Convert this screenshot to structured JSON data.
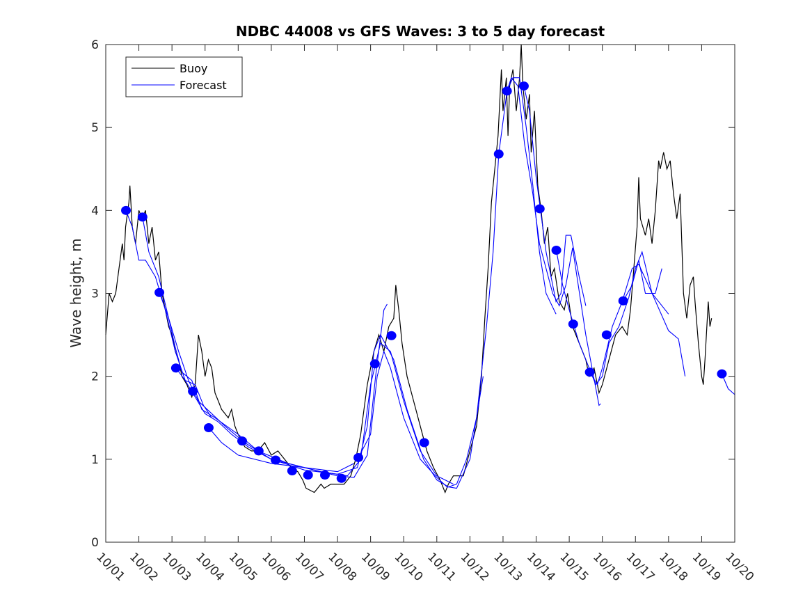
{
  "chart_data": {
    "type": "line",
    "title": "NDBC 44008 vs GFS Waves: 3 to 5 day forecast",
    "xlabel": "",
    "ylabel": "Wave height, m",
    "x_unit": "days since 10/01",
    "xlim": [
      0,
      19
    ],
    "ylim": [
      0,
      6
    ],
    "x_tick_labels": [
      "10/01",
      "10/02",
      "10/03",
      "10/04",
      "10/05",
      "10/06",
      "10/07",
      "10/08",
      "10/09",
      "10/10",
      "10/11",
      "10/12",
      "10/13",
      "10/14",
      "10/15",
      "10/16",
      "10/17",
      "10/18",
      "10/19",
      "10/20"
    ],
    "y_ticks": [
      0,
      1,
      2,
      3,
      4,
      5,
      6
    ],
    "grid": false,
    "legend": {
      "placement": "top-left",
      "entries": [
        "Buoy",
        "Forecast"
      ]
    },
    "colors": {
      "buoy": "#000000",
      "forecast": "#0000ff"
    },
    "buoy": [
      [
        0,
        2.5
      ],
      [
        0.1,
        3.0
      ],
      [
        0.2,
        2.9
      ],
      [
        0.3,
        3.0
      ],
      [
        0.4,
        3.3
      ],
      [
        0.5,
        3.6
      ],
      [
        0.55,
        3.4
      ],
      [
        0.6,
        3.8
      ],
      [
        0.7,
        4.1
      ],
      [
        0.73,
        4.3
      ],
      [
        0.8,
        3.8
      ],
      [
        0.9,
        3.6
      ],
      [
        1.0,
        4.0
      ],
      [
        1.1,
        3.9
      ],
      [
        1.2,
        4.0
      ],
      [
        1.3,
        3.6
      ],
      [
        1.4,
        3.8
      ],
      [
        1.5,
        3.4
      ],
      [
        1.6,
        3.5
      ],
      [
        1.7,
        3.0
      ],
      [
        1.8,
        2.8
      ],
      [
        1.9,
        2.6
      ],
      [
        2.0,
        2.5
      ],
      [
        2.1,
        2.3
      ],
      [
        2.2,
        2.2
      ],
      [
        2.3,
        2.0
      ],
      [
        2.45,
        1.9
      ],
      [
        2.6,
        1.75
      ],
      [
        2.7,
        1.9
      ],
      [
        2.8,
        2.5
      ],
      [
        2.9,
        2.3
      ],
      [
        3.0,
        2.0
      ],
      [
        3.1,
        2.2
      ],
      [
        3.2,
        2.1
      ],
      [
        3.3,
        1.8
      ],
      [
        3.4,
        1.7
      ],
      [
        3.5,
        1.6
      ],
      [
        3.6,
        1.55
      ],
      [
        3.7,
        1.5
      ],
      [
        3.8,
        1.6
      ],
      [
        3.9,
        1.4
      ],
      [
        4.0,
        1.3
      ],
      [
        4.2,
        1.15
      ],
      [
        4.4,
        1.1
      ],
      [
        4.6,
        1.1
      ],
      [
        4.8,
        1.2
      ],
      [
        5.0,
        1.05
      ],
      [
        5.2,
        1.1
      ],
      [
        5.4,
        1.0
      ],
      [
        5.6,
        0.9
      ],
      [
        5.8,
        0.85
      ],
      [
        5.95,
        0.75
      ],
      [
        6.05,
        0.65
      ],
      [
        6.3,
        0.6
      ],
      [
        6.5,
        0.7
      ],
      [
        6.6,
        0.65
      ],
      [
        6.8,
        0.7
      ],
      [
        7.0,
        0.7
      ],
      [
        7.2,
        0.7
      ],
      [
        7.4,
        0.8
      ],
      [
        7.55,
        1.0
      ],
      [
        7.7,
        1.3
      ],
      [
        7.8,
        1.6
      ],
      [
        7.9,
        1.9
      ],
      [
        8.0,
        2.1
      ],
      [
        8.1,
        2.3
      ],
      [
        8.25,
        2.5
      ],
      [
        8.4,
        2.3
      ],
      [
        8.55,
        2.6
      ],
      [
        8.7,
        2.7
      ],
      [
        8.76,
        3.1
      ],
      [
        8.85,
        2.8
      ],
      [
        8.95,
        2.4
      ],
      [
        9.1,
        2.0
      ],
      [
        9.3,
        1.7
      ],
      [
        9.5,
        1.4
      ],
      [
        9.7,
        1.1
      ],
      [
        9.9,
        0.9
      ],
      [
        10.1,
        0.75
      ],
      [
        10.25,
        0.6
      ],
      [
        10.35,
        0.7
      ],
      [
        10.5,
        0.8
      ],
      [
        10.8,
        0.8
      ],
      [
        11.0,
        1.1
      ],
      [
        11.2,
        1.4
      ],
      [
        11.35,
        2.0
      ],
      [
        11.45,
        2.7
      ],
      [
        11.55,
        3.3
      ],
      [
        11.65,
        4.1
      ],
      [
        11.75,
        4.5
      ],
      [
        11.85,
        4.9
      ],
      [
        11.95,
        5.7
      ],
      [
        12.0,
        5.2
      ],
      [
        12.1,
        5.6
      ],
      [
        12.15,
        4.9
      ],
      [
        12.2,
        5.5
      ],
      [
        12.3,
        5.7
      ],
      [
        12.4,
        5.2
      ],
      [
        12.5,
        5.6
      ],
      [
        12.55,
        6.0
      ],
      [
        12.6,
        5.5
      ],
      [
        12.7,
        5.1
      ],
      [
        12.8,
        5.4
      ],
      [
        12.85,
        4.7
      ],
      [
        12.95,
        5.2
      ],
      [
        13.05,
        4.3
      ],
      [
        13.15,
        4.0
      ],
      [
        13.25,
        3.6
      ],
      [
        13.35,
        3.8
      ],
      [
        13.45,
        3.2
      ],
      [
        13.55,
        3.3
      ],
      [
        13.7,
        2.9
      ],
      [
        13.85,
        2.8
      ],
      [
        13.95,
        3.0
      ],
      [
        14.1,
        2.6
      ],
      [
        14.3,
        2.4
      ],
      [
        14.5,
        2.2
      ],
      [
        14.6,
        2.0
      ],
      [
        14.75,
        2.1
      ],
      [
        14.9,
        1.8
      ],
      [
        15.0,
        1.9
      ],
      [
        15.2,
        2.2
      ],
      [
        15.4,
        2.5
      ],
      [
        15.6,
        2.6
      ],
      [
        15.75,
        2.5
      ],
      [
        15.85,
        2.8
      ],
      [
        15.95,
        3.3
      ],
      [
        16.05,
        3.8
      ],
      [
        16.1,
        4.4
      ],
      [
        16.15,
        3.9
      ],
      [
        16.3,
        3.7
      ],
      [
        16.4,
        3.9
      ],
      [
        16.5,
        3.6
      ],
      [
        16.6,
        4.0
      ],
      [
        16.7,
        4.6
      ],
      [
        16.75,
        4.5
      ],
      [
        16.85,
        4.7
      ],
      [
        16.95,
        4.5
      ],
      [
        17.05,
        4.6
      ],
      [
        17.15,
        4.2
      ],
      [
        17.25,
        3.9
      ],
      [
        17.35,
        4.2
      ],
      [
        17.45,
        3.0
      ],
      [
        17.55,
        2.7
      ],
      [
        17.65,
        3.1
      ],
      [
        17.75,
        3.2
      ],
      [
        17.8,
        2.9
      ],
      [
        17.9,
        2.4
      ],
      [
        18.0,
        2.0
      ],
      [
        18.05,
        1.9
      ],
      [
        18.1,
        2.2
      ],
      [
        18.2,
        2.9
      ],
      [
        18.25,
        2.6
      ],
      [
        18.3,
        2.7
      ]
    ],
    "forecast_points": [
      [
        0.61,
        4.0
      ],
      [
        1.11,
        3.92
      ],
      [
        1.62,
        3.01
      ],
      [
        2.12,
        2.1
      ],
      [
        2.63,
        1.82
      ],
      [
        3.11,
        1.38
      ],
      [
        4.12,
        1.22
      ],
      [
        4.62,
        1.1
      ],
      [
        5.13,
        0.99
      ],
      [
        5.63,
        0.86
      ],
      [
        6.11,
        0.81
      ],
      [
        6.62,
        0.81
      ],
      [
        7.12,
        0.77
      ],
      [
        7.63,
        1.02
      ],
      [
        8.13,
        2.15
      ],
      [
        8.63,
        2.49
      ],
      [
        9.62,
        1.2
      ],
      [
        11.87,
        4.68
      ],
      [
        12.12,
        5.44
      ],
      [
        12.63,
        5.5
      ],
      [
        13.11,
        4.02
      ],
      [
        13.61,
        3.52
      ],
      [
        14.12,
        2.63
      ],
      [
        14.62,
        2.05
      ],
      [
        15.13,
        2.5
      ],
      [
        15.63,
        2.91
      ],
      [
        18.61,
        2.03
      ]
    ],
    "forecast_lines": [
      [
        [
          0.61,
          4.0
        ],
        [
          0.8,
          3.8
        ],
        [
          1.0,
          3.4
        ],
        [
          1.2,
          3.4
        ],
        [
          1.5,
          3.2
        ],
        [
          1.8,
          2.8
        ],
        [
          2.1,
          2.3
        ],
        [
          2.4,
          1.95
        ],
        [
          2.7,
          1.75
        ],
        [
          3.0,
          1.55
        ],
        [
          3.4,
          1.45
        ],
        [
          3.8,
          1.3
        ],
        [
          4.3,
          1.15
        ],
        [
          5.0,
          1.0
        ],
        [
          6.0,
          0.9
        ],
        [
          7.0,
          0.85
        ],
        [
          7.5,
          0.95
        ]
      ],
      [
        [
          1.11,
          3.92
        ],
        [
          1.3,
          3.5
        ],
        [
          1.6,
          3.2
        ],
        [
          1.9,
          2.7
        ],
        [
          2.2,
          2.3
        ],
        [
          2.5,
          1.95
        ],
        [
          2.8,
          1.7
        ],
        [
          3.2,
          1.55
        ],
        [
          3.6,
          1.4
        ],
        [
          4.2,
          1.2
        ],
        [
          5.0,
          1.0
        ],
        [
          6.0,
          0.87
        ],
        [
          7.0,
          0.82
        ],
        [
          7.6,
          0.9
        ],
        [
          7.9,
          1.4
        ],
        [
          8.1,
          2.3
        ],
        [
          8.3,
          2.5
        ],
        [
          8.7,
          2.2
        ],
        [
          9.1,
          1.6
        ],
        [
          9.6,
          1.0
        ],
        [
          10.0,
          0.75
        ],
        [
          10.3,
          0.68
        ]
      ],
      [
        [
          1.62,
          3.01
        ],
        [
          1.9,
          2.7
        ],
        [
          2.1,
          2.35
        ],
        [
          2.3,
          2.05
        ],
        [
          2.6,
          1.95
        ],
        [
          2.9,
          1.6
        ],
        [
          3.3,
          1.5
        ],
        [
          4.0,
          1.3
        ],
        [
          4.6,
          1.1
        ],
        [
          5.5,
          0.95
        ],
        [
          6.5,
          0.85
        ],
        [
          7.3,
          0.8
        ],
        [
          7.7,
          1.0
        ],
        [
          8.0,
          1.9
        ],
        [
          8.3,
          2.4
        ],
        [
          8.6,
          2.3
        ],
        [
          9.0,
          1.7
        ],
        [
          9.5,
          1.1
        ],
        [
          10.0,
          0.8
        ],
        [
          10.5,
          0.7
        ]
      ],
      [
        [
          2.12,
          2.1
        ],
        [
          2.4,
          1.95
        ],
        [
          2.7,
          1.9
        ],
        [
          2.95,
          1.65
        ],
        [
          3.2,
          1.5
        ]
      ],
      [
        [
          3.11,
          1.38
        ],
        [
          3.5,
          1.2
        ],
        [
          4.0,
          1.05
        ],
        [
          5.0,
          0.95
        ],
        [
          6.0,
          0.9
        ],
        [
          7.0,
          0.8
        ],
        [
          7.5,
          0.78
        ],
        [
          7.9,
          1.05
        ],
        [
          8.15,
          2.0
        ],
        [
          8.4,
          2.8
        ],
        [
          8.5,
          2.87
        ]
      ],
      [
        [
          7.63,
          1.02
        ],
        [
          8.0,
          1.3
        ],
        [
          8.2,
          2.0
        ],
        [
          8.4,
          2.3
        ],
        [
          8.6,
          2.1
        ],
        [
          9.0,
          1.5
        ],
        [
          9.5,
          1.0
        ],
        [
          10.0,
          0.78
        ],
        [
          10.3,
          0.67
        ],
        [
          10.6,
          0.65
        ],
        [
          11.0,
          1.0
        ],
        [
          11.4,
          2.0
        ]
      ],
      [
        [
          10.3,
          0.66
        ],
        [
          10.6,
          0.7
        ],
        [
          10.9,
          1.0
        ],
        [
          11.2,
          1.5
        ],
        [
          11.5,
          2.6
        ],
        [
          11.7,
          3.5
        ],
        [
          11.87,
          4.68
        ],
        [
          12.12,
          5.44
        ],
        [
          12.3,
          5.6
        ],
        [
          12.5,
          5.6
        ],
        [
          12.7,
          5.0
        ],
        [
          12.9,
          4.3
        ],
        [
          13.1,
          3.5
        ],
        [
          13.3,
          3.0
        ],
        [
          13.6,
          2.75
        ]
      ],
      [
        [
          12.12,
          5.44
        ],
        [
          12.25,
          5.6
        ],
        [
          12.45,
          5.5
        ],
        [
          12.65,
          4.8
        ],
        [
          12.9,
          4.2
        ],
        [
          13.1,
          3.6
        ],
        [
          13.5,
          3.0
        ],
        [
          13.7,
          2.85
        ],
        [
          13.9,
          3.1
        ],
        [
          14.1,
          3.55
        ],
        [
          14.5,
          2.5
        ],
        [
          14.9,
          1.65
        ],
        [
          14.95,
          1.67
        ]
      ],
      [
        [
          12.63,
          5.5
        ],
        [
          12.8,
          5.2
        ],
        [
          13.0,
          4.4
        ],
        [
          13.3,
          3.5
        ],
        [
          13.6,
          2.9
        ],
        [
          13.75,
          3.0
        ],
        [
          13.9,
          3.7
        ],
        [
          14.05,
          3.7
        ],
        [
          14.3,
          3.2
        ],
        [
          14.5,
          2.85
        ]
      ],
      [
        [
          13.61,
          3.52
        ],
        [
          13.8,
          3.1
        ],
        [
          14.0,
          2.8
        ],
        [
          14.3,
          2.4
        ],
        [
          14.6,
          2.1
        ],
        [
          14.8,
          1.9
        ],
        [
          15.0,
          2.0
        ],
        [
          15.2,
          2.4
        ],
        [
          15.5,
          2.6
        ],
        [
          15.8,
          2.95
        ],
        [
          16.0,
          3.3
        ],
        [
          16.2,
          3.5
        ],
        [
          16.5,
          3.0
        ],
        [
          17.0,
          2.55
        ],
        [
          17.3,
          2.45
        ],
        [
          17.5,
          2.0
        ]
      ],
      [
        [
          14.62,
          2.05
        ],
        [
          14.85,
          1.9
        ],
        [
          15.0,
          2.1
        ],
        [
          15.3,
          2.6
        ],
        [
          15.6,
          2.9
        ],
        [
          15.9,
          3.3
        ],
        [
          16.1,
          3.35
        ],
        [
          16.5,
          3.0
        ],
        [
          16.9,
          2.8
        ],
        [
          17.0,
          2.75
        ]
      ],
      [
        [
          15.63,
          2.91
        ],
        [
          15.9,
          3.1
        ],
        [
          16.1,
          3.4
        ],
        [
          16.3,
          3.0
        ],
        [
          16.6,
          3.0
        ],
        [
          16.8,
          3.3
        ]
      ],
      [
        [
          18.61,
          2.03
        ],
        [
          18.8,
          1.85
        ],
        [
          19.0,
          1.78
        ]
      ]
    ]
  }
}
